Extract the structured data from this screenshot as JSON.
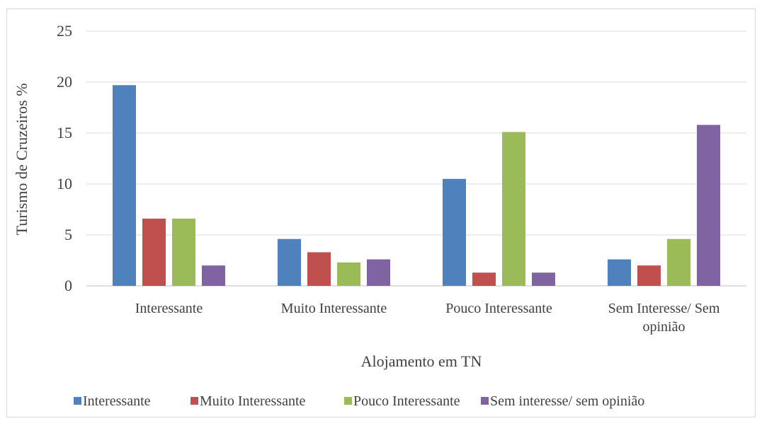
{
  "chart_data": {
    "type": "bar",
    "title": "",
    "xlabel": "Alojamento em TN",
    "ylabel": "Turismo de Cruzeiros %",
    "ylim": [
      0,
      25
    ],
    "yticks": [
      0,
      5,
      10,
      15,
      20,
      25
    ],
    "grid": true,
    "legend_position": "bottom",
    "categories": [
      [
        "Interessante"
      ],
      [
        "Muito Interessante"
      ],
      [
        "Pouco Interessante"
      ],
      [
        "Sem Interesse/ Sem",
        "opinião"
      ]
    ],
    "series": [
      {
        "name": "Interessante",
        "color": "#4f81bd",
        "values": [
          19.7,
          4.6,
          10.5,
          2.6
        ]
      },
      {
        "name": "Muito Interessante",
        "color": "#c0504d",
        "values": [
          6.6,
          3.3,
          1.3,
          2.0
        ]
      },
      {
        "name": "Pouco Interessante",
        "color": "#9bbb59",
        "values": [
          6.6,
          2.3,
          15.1,
          4.6
        ]
      },
      {
        "name": "Sem interesse/ sem opinião",
        "color": "#8064a2",
        "values": [
          2.0,
          2.6,
          1.3,
          15.8
        ]
      }
    ]
  }
}
